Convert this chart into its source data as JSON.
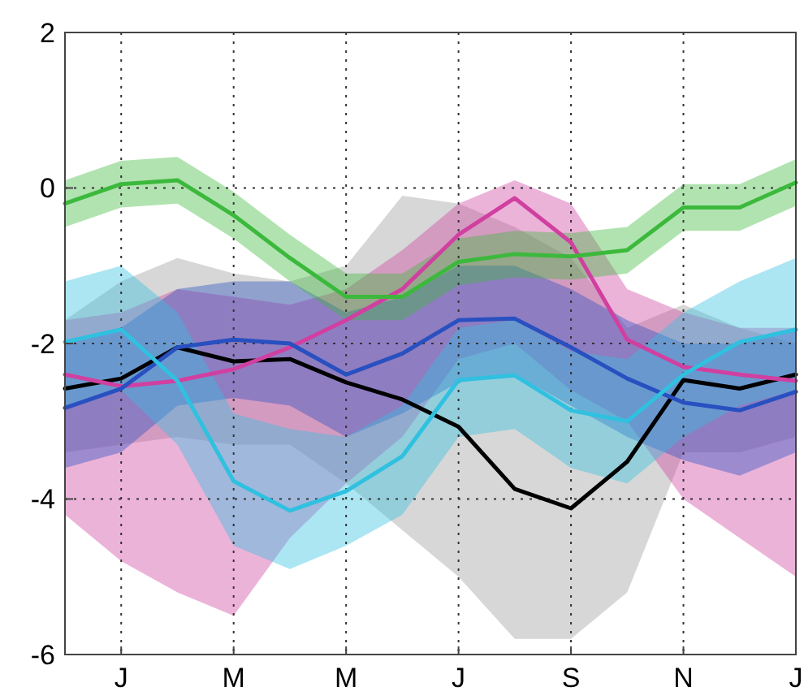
{
  "chart_data": {
    "type": "line",
    "categories": [
      null,
      "J",
      null,
      "M",
      null,
      "M",
      null,
      "J",
      null,
      "S",
      null,
      "N",
      null,
      "J"
    ],
    "ylim": [
      -6,
      2
    ],
    "yticks": [
      -6,
      -4,
      -2,
      0,
      2
    ],
    "grid": true,
    "line_style": "solid",
    "series": [
      {
        "color": "#000000",
        "values": [
          -2.58,
          -2.45,
          -2.05,
          -2.23,
          -2.2,
          -2.5,
          -2.72,
          -3.07,
          -3.87,
          -4.12,
          -3.52,
          -2.47,
          -2.58,
          -2.4
        ],
        "upper": [
          -1.7,
          -1.2,
          -0.9,
          -1.1,
          -1.2,
          -1.0,
          -0.1,
          -0.2,
          -0.5,
          -0.9,
          -1.8,
          -1.5,
          -1.8,
          -2.0
        ],
        "lower": [
          -3.4,
          -3.3,
          -3.2,
          -3.3,
          -3.3,
          -3.8,
          -4.4,
          -5.0,
          -5.8,
          -5.8,
          -5.2,
          -3.4,
          -3.4,
          -3.2
        ]
      },
      {
        "color": "#d040a0",
        "values": [
          -2.4,
          -2.55,
          -2.48,
          -2.33,
          -2.05,
          -1.7,
          -1.3,
          -0.6,
          -0.13,
          -0.7,
          -1.95,
          -2.3,
          -2.4,
          -2.48
        ],
        "upper": [
          -1.7,
          -1.6,
          -1.3,
          -1.4,
          -1.5,
          -1.3,
          -0.8,
          -0.2,
          0.1,
          -0.2,
          -1.3,
          -1.6,
          -1.8,
          -1.8
        ],
        "lower": [
          -4.2,
          -4.8,
          -5.2,
          -5.5,
          -4.5,
          -3.8,
          -3.2,
          -2.2,
          -2.0,
          -2.6,
          -3.0,
          -4.0,
          -4.5,
          -5.0
        ]
      },
      {
        "color": "#2850c0",
        "values": [
          -2.83,
          -2.58,
          -2.05,
          -1.95,
          -2.0,
          -2.4,
          -2.13,
          -1.7,
          -1.68,
          -2.05,
          -2.45,
          -2.76,
          -2.86,
          -2.62
        ],
        "upper": [
          -2.0,
          -1.8,
          -1.3,
          -1.2,
          -1.2,
          -1.6,
          -1.4,
          -1.0,
          -1.0,
          -1.3,
          -1.7,
          -2.0,
          -2.0,
          -1.8
        ],
        "lower": [
          -3.6,
          -3.4,
          -2.8,
          -2.7,
          -2.8,
          -3.2,
          -2.9,
          -2.5,
          -2.4,
          -2.8,
          -3.2,
          -3.5,
          -3.7,
          -3.4
        ]
      },
      {
        "color": "#30c0e0",
        "values": [
          -1.98,
          -1.82,
          -2.48,
          -3.77,
          -4.15,
          -3.9,
          -3.45,
          -2.47,
          -2.41,
          -2.86,
          -3.0,
          -2.4,
          -1.98,
          -1.82
        ],
        "upper": [
          -1.2,
          -1.0,
          -1.6,
          -2.9,
          -3.1,
          -3.2,
          -2.8,
          -1.8,
          -1.7,
          -2.1,
          -2.2,
          -1.6,
          -1.2,
          -0.9
        ],
        "lower": [
          -2.8,
          -2.6,
          -3.3,
          -4.6,
          -4.9,
          -4.6,
          -4.2,
          -3.2,
          -3.1,
          -3.6,
          -3.8,
          -3.2,
          -2.8,
          -2.6
        ]
      },
      {
        "color": "#3cb93c",
        "values": [
          -0.2,
          0.05,
          0.1,
          -0.35,
          -0.9,
          -1.4,
          -1.4,
          -0.95,
          -0.85,
          -0.88,
          -0.8,
          -0.25,
          -0.25,
          0.07
        ],
        "upper": [
          0.1,
          0.35,
          0.4,
          -0.05,
          -0.6,
          -1.1,
          -1.1,
          -0.65,
          -0.55,
          -0.58,
          -0.5,
          0.05,
          0.05,
          0.37
        ],
        "lower": [
          -0.5,
          -0.25,
          -0.2,
          -0.65,
          -1.2,
          -1.7,
          -1.7,
          -1.25,
          -1.15,
          -1.18,
          -1.1,
          -0.55,
          -0.55,
          -0.23
        ]
      }
    ]
  }
}
